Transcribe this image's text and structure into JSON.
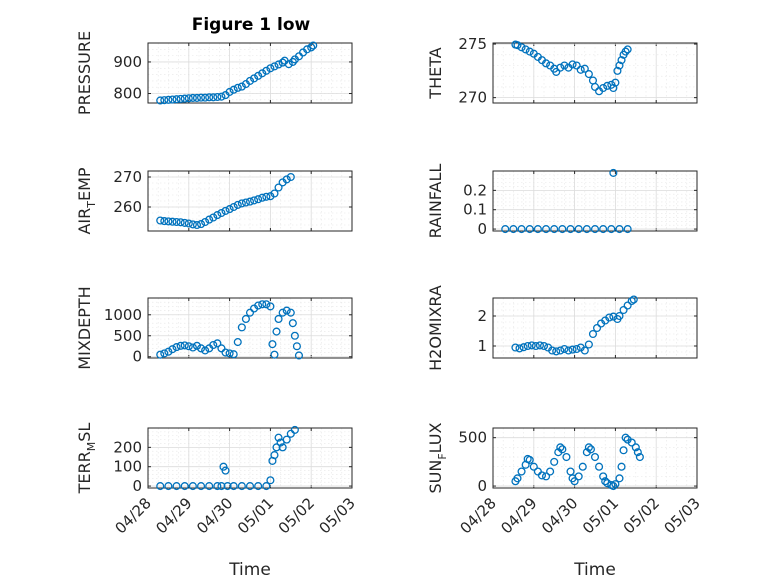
{
  "figure_title": "Figure 1 low",
  "marker_color": "#0072BD",
  "x_tick_labels": [
    "04/28",
    "04/29",
    "04/30",
    "05/01",
    "05/02",
    "05/03"
  ],
  "x_label": "Time",
  "chart_data": [
    {
      "type": "scatter",
      "ylabel": "PRESSURE",
      "title": "Figure 1 low",
      "xlim": [
        0,
        5
      ],
      "ylim": [
        770,
        960
      ],
      "yticks": [
        800,
        900
      ],
      "grid": true,
      "points": [
        [
          0.3,
          778
        ],
        [
          0.4,
          779
        ],
        [
          0.5,
          780
        ],
        [
          0.6,
          781
        ],
        [
          0.7,
          782
        ],
        [
          0.8,
          783
        ],
        [
          0.9,
          784
        ],
        [
          1.0,
          785
        ],
        [
          1.1,
          786
        ],
        [
          1.2,
          786
        ],
        [
          1.3,
          787
        ],
        [
          1.4,
          787
        ],
        [
          1.5,
          788
        ],
        [
          1.6,
          788
        ],
        [
          1.7,
          789
        ],
        [
          1.8,
          790
        ],
        [
          1.9,
          795
        ],
        [
          2.0,
          805
        ],
        [
          2.1,
          812
        ],
        [
          2.2,
          818
        ],
        [
          2.3,
          822
        ],
        [
          2.4,
          830
        ],
        [
          2.5,
          840
        ],
        [
          2.6,
          848
        ],
        [
          2.7,
          856
        ],
        [
          2.8,
          864
        ],
        [
          2.9,
          872
        ],
        [
          3.0,
          880
        ],
        [
          3.1,
          886
        ],
        [
          3.2,
          892
        ],
        [
          3.3,
          898
        ],
        [
          3.35,
          904
        ],
        [
          3.45,
          893
        ],
        [
          3.55,
          900
        ],
        [
          3.6,
          908
        ],
        [
          3.7,
          918
        ],
        [
          3.8,
          930
        ],
        [
          3.9,
          940
        ],
        [
          4.0,
          946
        ],
        [
          4.05,
          952
        ]
      ]
    },
    {
      "type": "scatter",
      "ylabel": "THETA",
      "xlim": [
        0,
        5
      ],
      "ylim": [
        269.5,
        275.1
      ],
      "yticks": [
        270,
        275
      ],
      "grid": true,
      "points": [
        [
          0.55,
          274.95
        ],
        [
          0.6,
          274.9
        ],
        [
          0.7,
          274.7
        ],
        [
          0.8,
          274.5
        ],
        [
          0.9,
          274.3
        ],
        [
          1.0,
          274.1
        ],
        [
          1.1,
          273.8
        ],
        [
          1.2,
          273.5
        ],
        [
          1.3,
          273.2
        ],
        [
          1.4,
          273.0
        ],
        [
          1.5,
          272.7
        ],
        [
          1.55,
          272.4
        ],
        [
          1.65,
          272.8
        ],
        [
          1.75,
          273.0
        ],
        [
          1.85,
          272.8
        ],
        [
          1.95,
          273.1
        ],
        [
          2.05,
          273.0
        ],
        [
          2.15,
          272.6
        ],
        [
          2.25,
          272.7
        ],
        [
          2.35,
          272.2
        ],
        [
          2.45,
          271.6
        ],
        [
          2.5,
          271.0
        ],
        [
          2.6,
          270.6
        ],
        [
          2.7,
          270.9
        ],
        [
          2.8,
          271.1
        ],
        [
          2.9,
          271.2
        ],
        [
          2.95,
          270.9
        ],
        [
          3.0,
          271.4
        ],
        [
          3.05,
          272.5
        ],
        [
          3.1,
          273.0
        ],
        [
          3.15,
          273.5
        ],
        [
          3.2,
          274.0
        ],
        [
          3.25,
          274.3
        ],
        [
          3.3,
          274.5
        ]
      ]
    },
    {
      "type": "scatter",
      "ylabel": "AIR_TEMP",
      "xlim": [
        0,
        5
      ],
      "ylim": [
        252,
        272
      ],
      "yticks": [
        260,
        270
      ],
      "grid": true,
      "points": [
        [
          0.3,
          255.5
        ],
        [
          0.4,
          255.3
        ],
        [
          0.5,
          255.2
        ],
        [
          0.6,
          255.1
        ],
        [
          0.7,
          255.0
        ],
        [
          0.8,
          254.9
        ],
        [
          0.9,
          254.7
        ],
        [
          1.0,
          254.5
        ],
        [
          1.1,
          254.2
        ],
        [
          1.2,
          254.0
        ],
        [
          1.3,
          254.3
        ],
        [
          1.4,
          255.0
        ],
        [
          1.5,
          255.8
        ],
        [
          1.6,
          256.5
        ],
        [
          1.7,
          257.3
        ],
        [
          1.8,
          258.0
        ],
        [
          1.9,
          258.7
        ],
        [
          2.0,
          259.3
        ],
        [
          2.1,
          260.0
        ],
        [
          2.2,
          260.7
        ],
        [
          2.3,
          261.2
        ],
        [
          2.4,
          261.5
        ],
        [
          2.5,
          261.8
        ],
        [
          2.6,
          262.2
        ],
        [
          2.7,
          262.6
        ],
        [
          2.8,
          263.1
        ],
        [
          2.9,
          263.4
        ],
        [
          3.0,
          263.6
        ],
        [
          3.1,
          264.5
        ],
        [
          3.2,
          266.5
        ],
        [
          3.3,
          268.2
        ],
        [
          3.4,
          269.2
        ],
        [
          3.5,
          270.0
        ]
      ]
    },
    {
      "type": "scatter",
      "ylabel": "RAINFALL",
      "xlim": [
        0,
        5
      ],
      "ylim": [
        -0.01,
        0.3
      ],
      "yticks": [
        0,
        0.1,
        0.2
      ],
      "grid": true,
      "points": [
        [
          0.3,
          0
        ],
        [
          0.5,
          0
        ],
        [
          0.7,
          0
        ],
        [
          0.9,
          0
        ],
        [
          1.1,
          0
        ],
        [
          1.3,
          0
        ],
        [
          1.5,
          0
        ],
        [
          1.7,
          0
        ],
        [
          1.9,
          0
        ],
        [
          2.1,
          0
        ],
        [
          2.3,
          0
        ],
        [
          2.5,
          0
        ],
        [
          2.7,
          0
        ],
        [
          2.9,
          0
        ],
        [
          2.95,
          0.29
        ],
        [
          3.1,
          0
        ],
        [
          3.3,
          0
        ]
      ]
    },
    {
      "type": "scatter",
      "ylabel": "MIXDEPTH",
      "xlim": [
        0,
        5
      ],
      "ylim": [
        -30,
        1400
      ],
      "yticks": [
        0,
        500,
        1000
      ],
      "grid": true,
      "points": [
        [
          0.3,
          50
        ],
        [
          0.4,
          80
        ],
        [
          0.5,
          120
        ],
        [
          0.6,
          180
        ],
        [
          0.7,
          230
        ],
        [
          0.8,
          260
        ],
        [
          0.9,
          270
        ],
        [
          1.0,
          250
        ],
        [
          1.1,
          220
        ],
        [
          1.2,
          260
        ],
        [
          1.3,
          200
        ],
        [
          1.4,
          150
        ],
        [
          1.5,
          200
        ],
        [
          1.6,
          280
        ],
        [
          1.7,
          320
        ],
        [
          1.8,
          200
        ],
        [
          1.9,
          100
        ],
        [
          2.0,
          80
        ],
        [
          2.1,
          60
        ],
        [
          2.2,
          350
        ],
        [
          2.3,
          700
        ],
        [
          2.4,
          900
        ],
        [
          2.5,
          1050
        ],
        [
          2.6,
          1150
        ],
        [
          2.7,
          1220
        ],
        [
          2.8,
          1250
        ],
        [
          2.9,
          1250
        ],
        [
          3.0,
          1200
        ],
        [
          3.05,
          300
        ],
        [
          3.1,
          50
        ],
        [
          3.15,
          600
        ],
        [
          3.2,
          900
        ],
        [
          3.3,
          1050
        ],
        [
          3.4,
          1100
        ],
        [
          3.5,
          1050
        ],
        [
          3.55,
          800
        ],
        [
          3.6,
          500
        ],
        [
          3.65,
          250
        ],
        [
          3.7,
          30
        ]
      ]
    },
    {
      "type": "scatter",
      "ylabel": "H2OMIXRA",
      "xlim": [
        0,
        5
      ],
      "ylim": [
        0.6,
        2.6
      ],
      "yticks": [
        1,
        2
      ],
      "grid": true,
      "points": [
        [
          0.55,
          0.95
        ],
        [
          0.65,
          0.92
        ],
        [
          0.75,
          0.96
        ],
        [
          0.85,
          1.0
        ],
        [
          0.95,
          1.02
        ],
        [
          1.05,
          1.0
        ],
        [
          1.15,
          1.02
        ],
        [
          1.25,
          1.0
        ],
        [
          1.35,
          0.95
        ],
        [
          1.45,
          0.85
        ],
        [
          1.55,
          0.82
        ],
        [
          1.65,
          0.85
        ],
        [
          1.75,
          0.9
        ],
        [
          1.85,
          0.85
        ],
        [
          1.95,
          0.88
        ],
        [
          2.05,
          0.9
        ],
        [
          2.15,
          0.95
        ],
        [
          2.25,
          0.85
        ],
        [
          2.35,
          1.05
        ],
        [
          2.45,
          1.4
        ],
        [
          2.55,
          1.6
        ],
        [
          2.65,
          1.75
        ],
        [
          2.75,
          1.85
        ],
        [
          2.85,
          1.95
        ],
        [
          2.95,
          1.98
        ],
        [
          3.05,
          1.9
        ],
        [
          3.1,
          2.0
        ],
        [
          3.2,
          2.2
        ],
        [
          3.3,
          2.35
        ],
        [
          3.4,
          2.5
        ],
        [
          3.45,
          2.55
        ]
      ]
    },
    {
      "type": "scatter",
      "ylabel": "TERR_MSL",
      "xlim": [
        0,
        5
      ],
      "ylim": [
        -10,
        300
      ],
      "yticks": [
        0,
        100,
        200
      ],
      "grid": true,
      "points": [
        [
          0.3,
          0
        ],
        [
          0.5,
          0
        ],
        [
          0.7,
          0
        ],
        [
          0.9,
          0
        ],
        [
          1.1,
          0
        ],
        [
          1.3,
          0
        ],
        [
          1.5,
          0
        ],
        [
          1.7,
          0
        ],
        [
          1.8,
          0
        ],
        [
          1.85,
          100
        ],
        [
          1.9,
          80
        ],
        [
          1.95,
          0
        ],
        [
          2.1,
          0
        ],
        [
          2.3,
          0
        ],
        [
          2.5,
          0
        ],
        [
          2.7,
          0
        ],
        [
          2.9,
          0
        ],
        [
          3.0,
          30
        ],
        [
          3.05,
          130
        ],
        [
          3.1,
          160
        ],
        [
          3.15,
          200
        ],
        [
          3.2,
          250
        ],
        [
          3.25,
          225
        ],
        [
          3.3,
          200
        ],
        [
          3.4,
          240
        ],
        [
          3.5,
          270
        ],
        [
          3.6,
          290
        ]
      ]
    },
    {
      "type": "scatter",
      "ylabel": "SUN_FLUX",
      "xlim": [
        0,
        5
      ],
      "ylim": [
        -20,
        600
      ],
      "yticks": [
        0,
        500
      ],
      "grid": true,
      "points": [
        [
          0.55,
          50
        ],
        [
          0.6,
          80
        ],
        [
          0.7,
          150
        ],
        [
          0.8,
          220
        ],
        [
          0.85,
          280
        ],
        [
          0.9,
          270
        ],
        [
          1.0,
          200
        ],
        [
          1.1,
          150
        ],
        [
          1.2,
          110
        ],
        [
          1.3,
          100
        ],
        [
          1.4,
          150
        ],
        [
          1.5,
          250
        ],
        [
          1.6,
          350
        ],
        [
          1.65,
          400
        ],
        [
          1.7,
          380
        ],
        [
          1.8,
          300
        ],
        [
          1.9,
          150
        ],
        [
          1.95,
          80
        ],
        [
          2.0,
          50
        ],
        [
          2.1,
          100
        ],
        [
          2.2,
          200
        ],
        [
          2.3,
          350
        ],
        [
          2.35,
          400
        ],
        [
          2.4,
          380
        ],
        [
          2.5,
          300
        ],
        [
          2.6,
          200
        ],
        [
          2.7,
          100
        ],
        [
          2.75,
          50
        ],
        [
          2.8,
          30
        ],
        [
          2.9,
          10
        ],
        [
          2.95,
          0
        ],
        [
          3.0,
          20
        ],
        [
          3.1,
          80
        ],
        [
          3.15,
          200
        ],
        [
          3.2,
          370
        ],
        [
          3.25,
          500
        ],
        [
          3.3,
          480
        ],
        [
          3.4,
          450
        ],
        [
          3.5,
          400
        ],
        [
          3.55,
          350
        ],
        [
          3.6,
          300
        ]
      ]
    }
  ]
}
